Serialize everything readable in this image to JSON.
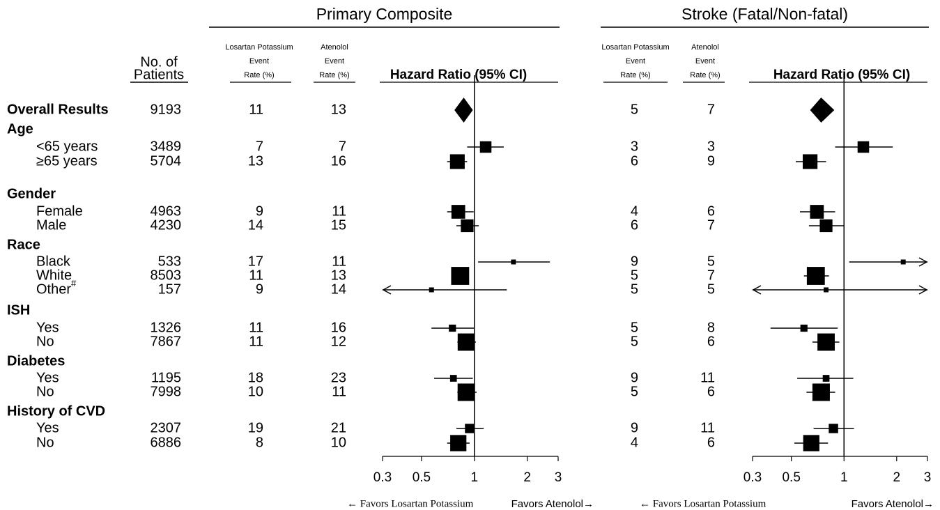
{
  "patients_header": [
    "No. of",
    "Patients"
  ],
  "rows": [
    {
      "label": "Overall Results",
      "bold": true,
      "patients": 9193
    },
    {
      "label": "Age",
      "bold": true,
      "patients": null
    },
    {
      "label": "<65 years",
      "bold": false,
      "patients": 3489
    },
    {
      "label": "≥65 years",
      "bold": false,
      "patients": 5704
    },
    {
      "label": "Gender",
      "bold": true,
      "patients": null
    },
    {
      "label": "Female",
      "bold": false,
      "patients": 4963
    },
    {
      "label": "Male",
      "bold": false,
      "patients": 4230
    },
    {
      "label": "Race",
      "bold": true,
      "patients": null
    },
    {
      "label": "Black",
      "bold": false,
      "patients": 533
    },
    {
      "label": "White",
      "bold": false,
      "patients": 8503
    },
    {
      "label": "Other",
      "sup": "#",
      "bold": false,
      "patients": 157
    },
    {
      "label": "ISH",
      "bold": true,
      "patients": null
    },
    {
      "label": "Yes",
      "bold": false,
      "patients": 1326
    },
    {
      "label": "No",
      "bold": false,
      "patients": 7867
    },
    {
      "label": "Diabetes",
      "bold": true,
      "patients": null
    },
    {
      "label": "Yes",
      "bold": false,
      "patients": 1195
    },
    {
      "label": "No",
      "bold": false,
      "patients": 7998
    },
    {
      "label": "History of CVD",
      "bold": true,
      "patients": null
    },
    {
      "label": "Yes",
      "bold": false,
      "patients": 2307
    },
    {
      "label": "No",
      "bold": false,
      "patients": 6886
    }
  ],
  "chart_data": [
    {
      "type": "forest",
      "title": "Primary Composite",
      "rate_headers": [
        [
          "Losartan Potassium",
          "Event",
          "Rate (%)"
        ],
        [
          "Atenolol",
          "Event",
          "Rate (%)"
        ]
      ],
      "hr_header": "Hazard Ratio (95% CI)",
      "losartan": [
        11,
        null,
        7,
        13,
        null,
        9,
        14,
        null,
        17,
        11,
        9,
        null,
        11,
        11,
        null,
        18,
        10,
        null,
        19,
        8
      ],
      "atenolol": [
        13,
        null,
        7,
        16,
        null,
        11,
        15,
        null,
        11,
        13,
        14,
        null,
        16,
        12,
        null,
        23,
        11,
        null,
        21,
        10
      ],
      "values": [
        0.87,
        null,
        1.16,
        0.8,
        null,
        0.81,
        0.91,
        null,
        1.67,
        0.83,
        0.57,
        null,
        0.75,
        0.9,
        null,
        0.76,
        0.9,
        null,
        0.94,
        0.81
      ],
      "lower": [
        0.77,
        null,
        0.91,
        0.7,
        null,
        0.7,
        0.79,
        null,
        1.05,
        0.75,
        0.21,
        null,
        0.57,
        0.8,
        null,
        0.59,
        0.8,
        null,
        0.79,
        0.7
      ],
      "upper": [
        0.98,
        null,
        1.47,
        0.91,
        null,
        0.99,
        1.06,
        null,
        2.69,
        0.89,
        1.53,
        null,
        1.0,
        1.02,
        null,
        0.98,
        1.03,
        null,
        1.13,
        0.94
      ],
      "summary_rows": [
        0
      ],
      "xlim": [
        0.3,
        3
      ],
      "xticks": [
        0.3,
        0.5,
        1,
        2,
        3
      ],
      "log_x": true,
      "reference_line": 1,
      "caption_left": "← Favors Losartan Potassium",
      "caption_right": "Favors Atenolol→"
    },
    {
      "type": "forest",
      "title": "Stroke (Fatal/Non-fatal)",
      "rate_headers": [
        [
          "Losartan Potassium",
          "Event",
          "Rate (%)"
        ],
        [
          "Atenolol",
          "Event",
          "Rate (%)"
        ]
      ],
      "hr_header": "Hazard Ratio (95% CI)",
      "losartan": [
        5,
        null,
        3,
        6,
        null,
        4,
        6,
        null,
        9,
        5,
        5,
        null,
        5,
        5,
        null,
        9,
        5,
        null,
        9,
        4
      ],
      "atenolol": [
        7,
        null,
        3,
        9,
        null,
        6,
        7,
        null,
        5,
        7,
        5,
        null,
        8,
        6,
        null,
        11,
        6,
        null,
        11,
        6
      ],
      "values": [
        0.74,
        null,
        1.29,
        0.64,
        null,
        0.7,
        0.79,
        null,
        2.18,
        0.69,
        0.79,
        null,
        0.59,
        0.79,
        null,
        0.79,
        0.74,
        null,
        0.87,
        0.65
      ],
      "lower": [
        0.64,
        null,
        0.89,
        0.53,
        null,
        0.56,
        0.63,
        null,
        1.07,
        0.59,
        0.25,
        null,
        0.38,
        0.66,
        null,
        0.54,
        0.61,
        null,
        0.67,
        0.52
      ],
      "upper": [
        0.88,
        null,
        1.9,
        0.79,
        null,
        0.89,
        1.0,
        null,
        3.5,
        0.82,
        3.6,
        null,
        0.92,
        0.94,
        null,
        1.13,
        0.89,
        null,
        1.14,
        0.81
      ],
      "summary_rows": [
        0
      ],
      "xlim": [
        0.3,
        3
      ],
      "xticks": [
        0.3,
        0.5,
        1,
        2,
        3
      ],
      "log_x": true,
      "reference_line": 1,
      "caption_left": "← Favors Losartan Potassium",
      "caption_right": "Favors Atenolol→"
    }
  ]
}
